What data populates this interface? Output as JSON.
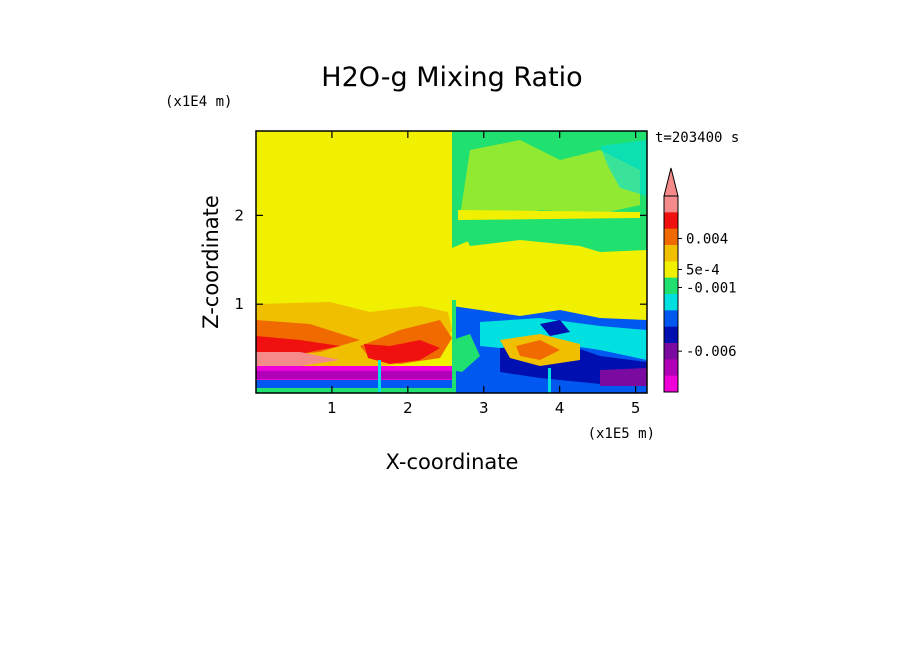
{
  "chart_data": {
    "type": "heatmap",
    "title": "H2O-g Mixing Ratio",
    "xlabel": "X-coordinate",
    "ylabel": "Z-coordinate",
    "x_multiplier": "(x1E5 m)",
    "y_multiplier": "(x1E4 m)",
    "time_label": "t=203400 s",
    "xlim": [
      0,
      5.15
    ],
    "ylim": [
      0,
      2.95
    ],
    "x_ticks": [
      "1",
      "2",
      "3",
      "4",
      "5"
    ],
    "x_tick_values": [
      1,
      2,
      3,
      4,
      5
    ],
    "y_ticks": [
      "1",
      "2"
    ],
    "y_tick_values": [
      1,
      2
    ],
    "colorbar": {
      "labels": [
        "0.004",
        "5e-4",
        "-0.001",
        "-0.006"
      ],
      "colors_top_to_bottom": [
        "#f48a8a",
        "#f01010",
        "#f06a00",
        "#f0c000",
        "#f0f000",
        "#20e070",
        "#00e0e0",
        "#0058f0",
        "#0010b0",
        "#7a0aa0",
        "#b000b8",
        "#f000d8"
      ],
      "extend": "max"
    },
    "regions": [
      {
        "level": "yellow",
        "x": [
          0,
          2.6
        ],
        "z": [
          0.3,
          2.95
        ]
      },
      {
        "level": "green",
        "x": [
          2.6,
          5.15
        ],
        "z": [
          1.95,
          2.95
        ]
      },
      {
        "level": "yellow",
        "x": [
          2.6,
          5.15
        ],
        "z": [
          1.0,
          1.95
        ]
      },
      {
        "level": "orange",
        "x": [
          0,
          1.3
        ],
        "z": [
          0.35,
          0.95
        ]
      },
      {
        "level": "red",
        "x": [
          0,
          1.0
        ],
        "z": [
          0.35,
          0.6
        ]
      },
      {
        "level": "blue",
        "x": [
          2.6,
          5.15
        ],
        "z": [
          0.0,
          0.95
        ]
      },
      {
        "level": "magenta",
        "x": [
          0,
          2.6
        ],
        "z": [
          0.05,
          0.3
        ]
      }
    ]
  }
}
